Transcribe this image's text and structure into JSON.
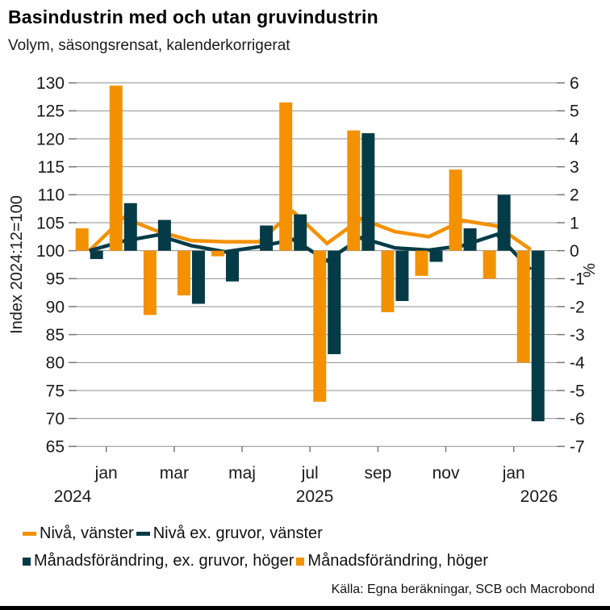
{
  "header": {
    "title": "Basindustrin med och utan gruvindustrin",
    "subtitle": "Volym, säsongsrensat, kalenderkorrigerat"
  },
  "footer": {
    "source": "Källa: Egna beräkningar, SCB och Macrobond"
  },
  "colors": {
    "orange": "#F39100",
    "teal": "#053B47",
    "gridline": "#8F8F8F",
    "tick": "#777777",
    "text": "#1A1A1A",
    "background": "#FFFFFF",
    "bottom_bar": "#000000"
  },
  "legend": {
    "items": [
      {
        "label": "Nivå, vänster",
        "marker": "line",
        "color_key": "orange"
      },
      {
        "label": "Nivå ex. gruvor, vänster",
        "marker": "line",
        "color_key": "teal"
      },
      {
        "label": "Månadsförändring, ex. gruvor, höger",
        "marker": "square",
        "color_key": "teal"
      },
      {
        "label": "Månadsförändring, höger",
        "marker": "square",
        "color_key": "orange"
      }
    ]
  },
  "chart_data": {
    "type": "combo bar+line, dual axis",
    "months": [
      "dec 2024",
      "jan 2025",
      "feb 2025",
      "mar 2025",
      "apr 2025",
      "maj 2025",
      "jun 2025",
      "jul 2025",
      "aug 2025",
      "sep 2025",
      "okt 2025",
      "nov 2025",
      "dec 2025",
      "jan 2026"
    ],
    "x_tick_labels": [
      "jan",
      "mar",
      "maj",
      "jul",
      "sep",
      "nov",
      "jan"
    ],
    "year_labels": [
      "2024",
      "2025",
      "2026"
    ],
    "left_axis": {
      "title": "Index 2024:12=100",
      "min": 65,
      "max": 130,
      "step": 5
    },
    "right_axis": {
      "title": "%",
      "min": -7,
      "max": 6,
      "step": 1
    },
    "grid": true,
    "legend_position": "bottom-left",
    "series": [
      {
        "name": "Nivå, vänster",
        "type": "line",
        "axis": "left",
        "color_key": "orange",
        "values": [
          100.0,
          105.9,
          103.5,
          101.8,
          101.6,
          101.6,
          107.0,
          101.3,
          105.7,
          103.4,
          102.5,
          105.4,
          104.4,
          100.2
        ]
      },
      {
        "name": "Nivå ex. gruvor, vänster",
        "type": "line",
        "axis": "left",
        "color_key": "teal",
        "values": [
          100.0,
          101.7,
          102.8,
          100.9,
          99.8,
          100.7,
          102.0,
          98.2,
          102.3,
          100.5,
          100.1,
          100.9,
          102.9,
          96.6
        ]
      },
      {
        "name": "Månadsförändring, ex. gruvor, höger",
        "type": "bar",
        "axis": "right",
        "color_key": "teal",
        "values": [
          -0.3,
          1.7,
          1.1,
          -1.9,
          -1.1,
          0.9,
          1.3,
          -3.7,
          4.2,
          -1.8,
          -0.4,
          0.8,
          2.0,
          -6.1
        ]
      },
      {
        "name": "Månadsförändring, höger",
        "type": "bar",
        "axis": "right",
        "color_key": "orange",
        "values": [
          0.8,
          5.9,
          -2.3,
          -1.6,
          -0.2,
          0.0,
          5.3,
          -5.4,
          4.3,
          -2.2,
          -0.9,
          2.9,
          -1.0,
          -4.0
        ]
      }
    ]
  }
}
